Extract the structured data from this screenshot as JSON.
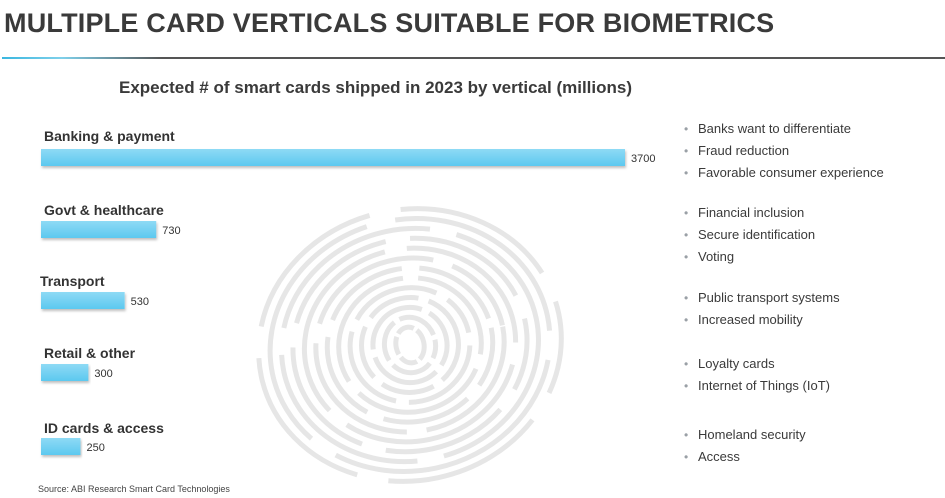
{
  "header": {
    "title": "MULTIPLE CARD VERTICALS SUITABLE FOR BIOMETRICS"
  },
  "chart_data": {
    "type": "bar",
    "orientation": "horizontal",
    "title": "Expected # of smart cards shipped in 2023 by vertical (millions)",
    "categories": [
      "Banking & payment",
      "Govt & healthcare",
      "Transport",
      "Retail & other",
      "ID cards & access"
    ],
    "values": [
      3700,
      730,
      530,
      300,
      250
    ],
    "value_labels": [
      "3700",
      "730",
      "530",
      "300",
      "250"
    ],
    "xlabel": "",
    "ylabel": "",
    "xlim": [
      0,
      3700
    ],
    "grid": false,
    "bar_color": "#5cc8ef",
    "bar_color_light": "#8fdaf5"
  },
  "bullets": [
    [
      "Banks want to differentiate",
      "Fraud reduction",
      "Favorable consumer experience"
    ],
    [
      "Financial inclusion",
      "Secure identification",
      "Voting"
    ],
    [
      "Public transport systems",
      "Increased mobility"
    ],
    [
      "Loyalty cards",
      "Internet of Things (IoT)"
    ],
    [
      "Homeland security",
      "Access"
    ]
  ],
  "source": "Source: ABI Research Smart Card Technologies",
  "decoration": {
    "background_icon": "fingerprint-icon",
    "fingerprint_color": "#e6e6e6"
  }
}
